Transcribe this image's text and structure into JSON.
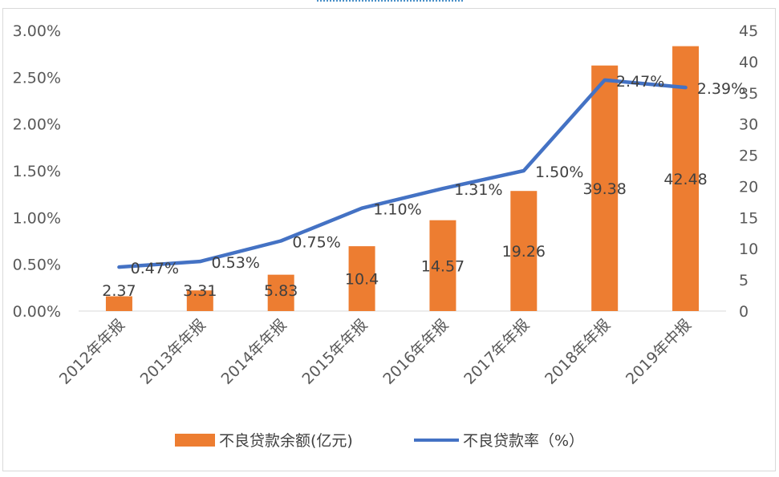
{
  "chart_data": {
    "type": "bar",
    "categories": [
      "2012年年报",
      "2013年年报",
      "2014年年报",
      "2015年年报",
      "2016年年报",
      "2017年年报",
      "2018年年报",
      "2019年中报"
    ],
    "series": [
      {
        "name": "不良贷款余额(亿元)",
        "type": "bar",
        "axis": "right",
        "color": "#ED7D31",
        "values": [
          2.37,
          3.31,
          5.83,
          10.4,
          14.57,
          19.26,
          39.38,
          42.48
        ],
        "labels": [
          "2.37",
          "3.31",
          "5.83",
          "10.4",
          "14.57",
          "19.26",
          "39.38",
          "42.48"
        ]
      },
      {
        "name": "不良贷款率（%）",
        "type": "line",
        "axis": "left",
        "color": "#4472C4",
        "values": [
          0.47,
          0.53,
          0.75,
          1.1,
          1.31,
          1.5,
          2.47,
          2.39
        ],
        "labels": [
          "0.47%",
          "0.53%",
          "0.75%",
          "1.10%",
          "1.31%",
          "1.50%",
          "2.47%",
          "2.39%"
        ]
      }
    ],
    "left_axis": {
      "ylim": [
        0,
        3.0
      ],
      "ticks": [
        "0.00%",
        "0.50%",
        "1.00%",
        "1.50%",
        "2.00%",
        "2.50%",
        "3.00%"
      ]
    },
    "right_axis": {
      "ylim": [
        0,
        45
      ],
      "ticks": [
        "0",
        "5",
        "10",
        "15",
        "20",
        "25",
        "30",
        "35",
        "40",
        "45"
      ]
    },
    "grid": false,
    "legend": "bottom"
  }
}
